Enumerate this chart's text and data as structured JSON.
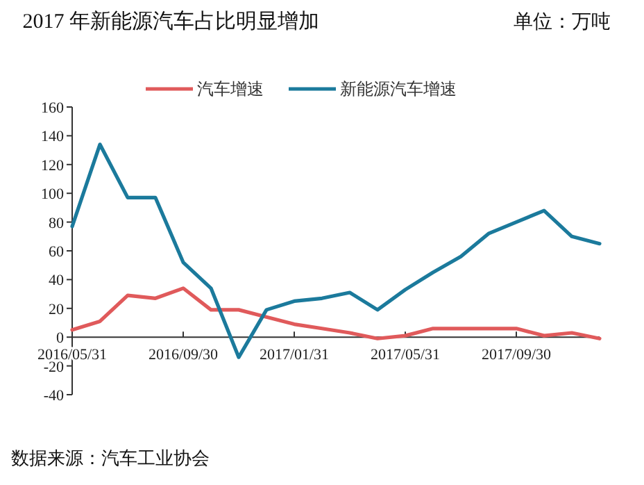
{
  "chart_data": {
    "type": "line",
    "title": "2017 年新能源汽车占比明显增加",
    "subtitle": "单位：万吨",
    "annotations": [
      "数据来源：汽车工业协会"
    ],
    "categories": [
      "2016/05/31",
      null,
      null,
      null,
      "2016/09/30",
      null,
      null,
      null,
      "2017/01/31",
      null,
      null,
      null,
      "2017/05/31",
      null,
      null,
      null,
      "2017/09/30",
      null,
      null,
      null
    ],
    "series": [
      {
        "name": "汽车增速",
        "color": "#e05a5b",
        "values": [
          5,
          11,
          29,
          27,
          34,
          19,
          19,
          14,
          9,
          6,
          3,
          -1,
          1,
          6,
          6,
          6,
          6,
          1,
          3,
          -1
        ]
      },
      {
        "name": "新能源汽车增速",
        "color": "#1b7a9c",
        "values": [
          77,
          134,
          97,
          97,
          52,
          34,
          -14,
          19,
          25,
          27,
          31,
          19,
          33,
          45,
          56,
          72,
          80,
          88,
          70,
          65
        ]
      }
    ],
    "ylim": [
      -40,
      160
    ],
    "yticks": [
      -40,
      -20,
      0,
      20,
      40,
      60,
      80,
      100,
      120,
      140,
      160
    ],
    "legend": "top",
    "grid": false,
    "line_style": "solid",
    "marker": "none"
  }
}
